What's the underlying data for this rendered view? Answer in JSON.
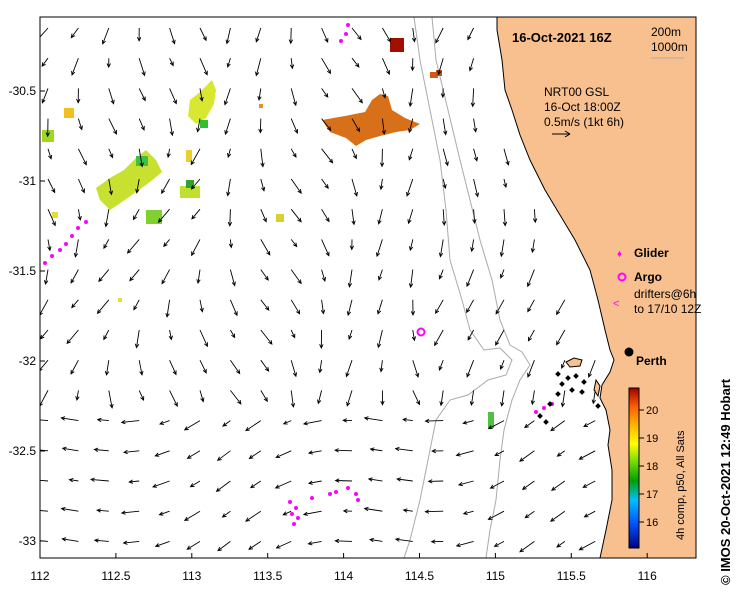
{
  "title": "16-Oct-2021 16Z",
  "depth_legend": {
    "line1": "200m",
    "line2": "1000m"
  },
  "current_legend": {
    "line1": "NRT00 GSL",
    "line2": "16-Oct 18:00Z",
    "line3": "0.5m/s (1kt 6h)"
  },
  "legend": {
    "glider": "Glider",
    "argo": "Argo",
    "drifters1": "drifters@6h",
    "drifters2": "to 17/10 12Z"
  },
  "city": "Perth",
  "x_ticks": [
    "112",
    "112.5",
    "113",
    "113.5",
    "114",
    "114.5",
    "115",
    "115.5",
    "116"
  ],
  "y_ticks": [
    "-30.5",
    "-31",
    "-31.5",
    "-32",
    "-32.5",
    "-33"
  ],
  "colorbar": {
    "ticks": [
      "20",
      "19",
      "18",
      "17",
      "16"
    ],
    "label": "4h comp, p50, All Sats"
  },
  "credit": "© IMOS 20-Oct-2021 12:49 Hobart",
  "colors": {
    "land": "#f9c08f",
    "arrow": "#000000",
    "marker": "#ff00ff",
    "coast": "#000000",
    "bathy": "#aaaaaa"
  }
}
